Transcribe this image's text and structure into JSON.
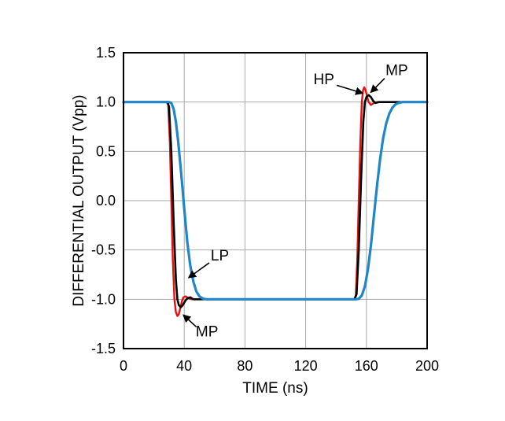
{
  "chart_data": {
    "type": "line",
    "title": "",
    "xlabel": "TIME (ns)",
    "ylabel": "DIFFERENTIAL OUTPUT (Vpp)",
    "xlim": [
      0,
      200
    ],
    "ylim": [
      -1.5,
      1.5
    ],
    "grid": true,
    "grid_color": "#a9a9a9",
    "axis_color": "#000000",
    "legend_position": "none",
    "xticks": [
      {
        "v": 0,
        "label": "0"
      },
      {
        "v": 40,
        "label": "40"
      },
      {
        "v": 80,
        "label": "80"
      },
      {
        "v": 120,
        "label": "120"
      },
      {
        "v": 160,
        "label": "160"
      },
      {
        "v": 200,
        "label": "200"
      }
    ],
    "yticks": [
      {
        "v": -1.5,
        "label": "-1.5"
      },
      {
        "v": -1.0,
        "label": "-1.0"
      },
      {
        "v": -0.5,
        "label": "-0.5"
      },
      {
        "v": 0.0,
        "label": "0.0"
      },
      {
        "v": 0.5,
        "label": "0.5"
      },
      {
        "v": 1.0,
        "label": "1.0"
      },
      {
        "v": 1.5,
        "label": "1.5"
      }
    ],
    "series": [
      {
        "name": "HP",
        "color": "#e8100f",
        "width": 2.4,
        "points": [
          [
            0,
            1.0
          ],
          [
            28.5,
            1.0
          ],
          [
            29.5,
            0.97
          ],
          [
            30.5,
            0.6
          ],
          [
            31.5,
            0.0
          ],
          [
            32.5,
            -0.6
          ],
          [
            33.5,
            -1.0
          ],
          [
            34.5,
            -1.13
          ],
          [
            35.5,
            -1.17
          ],
          [
            36.5,
            -1.15
          ],
          [
            37.5,
            -1.08
          ],
          [
            38.5,
            -1.02
          ],
          [
            39.5,
            -0.98
          ],
          [
            41,
            -0.97
          ],
          [
            43,
            -0.99
          ],
          [
            45,
            -1.0
          ],
          [
            60,
            -1.0
          ],
          [
            100,
            -1.0
          ],
          [
            152,
            -1.0
          ],
          [
            153,
            -0.97
          ],
          [
            154,
            -0.6
          ],
          [
            155,
            0.0
          ],
          [
            156,
            0.6
          ],
          [
            157,
            1.0
          ],
          [
            157.8,
            1.12
          ],
          [
            158.6,
            1.15
          ],
          [
            159.5,
            1.12
          ],
          [
            160.5,
            1.05
          ],
          [
            161.5,
            1.0
          ],
          [
            163,
            0.97
          ],
          [
            165,
            0.99
          ],
          [
            167,
            1.0
          ],
          [
            200,
            1.0
          ]
        ]
      },
      {
        "name": "MP",
        "color": "#000000",
        "width": 2.6,
        "points": [
          [
            0,
            1.0
          ],
          [
            29,
            1.0
          ],
          [
            30,
            0.95
          ],
          [
            31.5,
            0.5
          ],
          [
            33,
            -0.2
          ],
          [
            34.5,
            -0.8
          ],
          [
            35.5,
            -1.0
          ],
          [
            36.5,
            -1.06
          ],
          [
            37.8,
            -1.08
          ],
          [
            39,
            -1.06
          ],
          [
            40.5,
            -1.02
          ],
          [
            42,
            -0.99
          ],
          [
            44,
            -0.98
          ],
          [
            46,
            -1.0
          ],
          [
            60,
            -1.0
          ],
          [
            152,
            -1.0
          ],
          [
            153.5,
            -0.95
          ],
          [
            155,
            -0.5
          ],
          [
            156.5,
            0.2
          ],
          [
            158,
            0.8
          ],
          [
            159,
            1.0
          ],
          [
            160,
            1.05
          ],
          [
            161.5,
            1.07
          ],
          [
            163,
            1.05
          ],
          [
            164.5,
            1.01
          ],
          [
            166,
            0.99
          ],
          [
            168,
            1.0
          ],
          [
            200,
            1.0
          ]
        ]
      },
      {
        "name": "LP",
        "color": "#1f86c9",
        "width": 3.2,
        "points": [
          [
            0,
            1.0
          ],
          [
            30,
            1.0
          ],
          [
            31.5,
            0.99
          ],
          [
            33,
            0.93
          ],
          [
            34.5,
            0.8
          ],
          [
            36,
            0.6
          ],
          [
            38,
            0.28
          ],
          [
            40,
            -0.08
          ],
          [
            42,
            -0.42
          ],
          [
            44,
            -0.66
          ],
          [
            46,
            -0.82
          ],
          [
            48,
            -0.92
          ],
          [
            50,
            -0.97
          ],
          [
            52.5,
            -0.995
          ],
          [
            55,
            -1.0
          ],
          [
            100,
            -1.0
          ],
          [
            153,
            -1.0
          ],
          [
            155,
            -0.995
          ],
          [
            157,
            -0.96
          ],
          [
            159,
            -0.87
          ],
          [
            161,
            -0.7
          ],
          [
            163,
            -0.45
          ],
          [
            165,
            -0.15
          ],
          [
            167,
            0.15
          ],
          [
            169,
            0.42
          ],
          [
            171,
            0.63
          ],
          [
            173,
            0.78
          ],
          [
            175,
            0.88
          ],
          [
            177,
            0.94
          ],
          [
            179,
            0.975
          ],
          [
            181,
            0.99
          ],
          [
            184,
            1.0
          ],
          [
            200,
            1.0
          ]
        ]
      }
    ],
    "annotations": [
      {
        "label": "HP",
        "text": [
          132,
          1.23
        ],
        "tail": [
          140.5,
          1.17
        ],
        "tip": [
          157.5,
          1.09
        ]
      },
      {
        "label": "MP",
        "text": [
          180,
          1.32
        ],
        "tail": [
          172,
          1.24
        ],
        "tip": [
          163,
          1.1
        ]
      },
      {
        "label": "LP",
        "text": [
          63.5,
          -0.56
        ],
        "tail": [
          56.5,
          -0.63
        ],
        "tip": [
          43,
          -0.78
        ]
      },
      {
        "label": "MP",
        "text": [
          55,
          -1.33
        ],
        "tail": [
          48,
          -1.28
        ],
        "tip": [
          39.5,
          -1.16
        ]
      }
    ]
  }
}
